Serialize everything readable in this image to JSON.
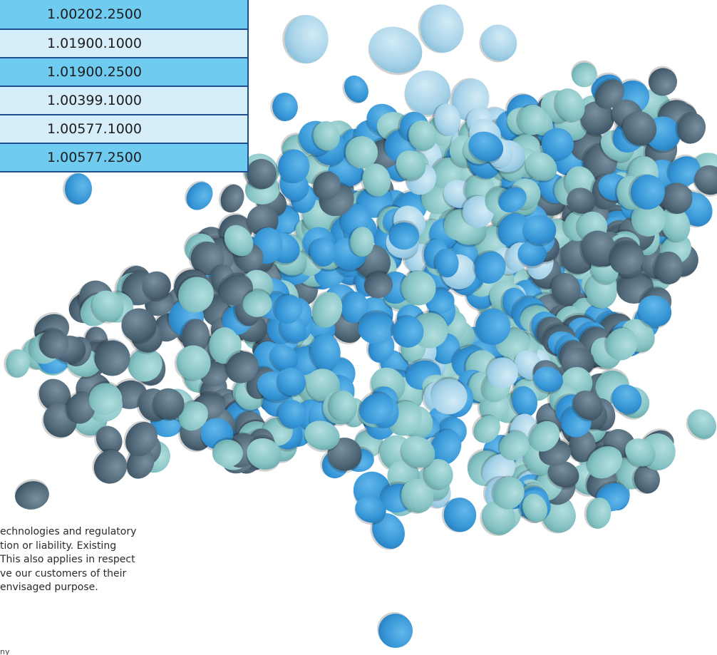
{
  "codes": [
    "1.00202.2500",
    "1.01900.1000",
    "1.01900.2500",
    "1.00399.1000",
    "1.00577.1000",
    "1.00577.2500"
  ],
  "disclaimer_lines": [
    "echnologies and regulatory",
    "tion or liability. Existing",
    " This also applies in respect",
    "ve our customers of their",
    " envisaged purpose."
  ],
  "footnote": "ny",
  "colors": {
    "table_dark": "#6fcbef",
    "table_light": "#d6eefa",
    "table_border": "#1f4e8c",
    "tablet_blue": "#3a9bd8",
    "tablet_aqua": "#8cc9c9",
    "tablet_slate": "#4f6878",
    "tablet_pale": "#a8d4e8"
  },
  "image": {
    "name": "scattered-tablets-photo"
  }
}
